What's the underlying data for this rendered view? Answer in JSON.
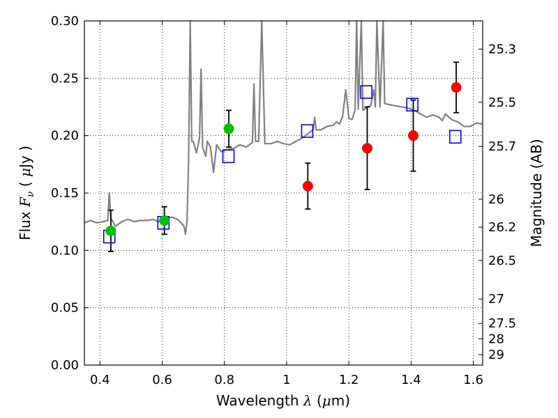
{
  "chart_data": {
    "type": "scatter",
    "xlabel": {
      "prefix": "Wavelength ",
      "symbol": "λ",
      "unit_open": " (",
      "unit_mu": "μ",
      "unit_close": "m)"
    },
    "ylabel": {
      "prefix": "Flux ",
      "symbol_F": "F",
      "symbol_sub": "ν",
      "unit_open": " ( ",
      "unit_mu": "μ",
      "unit_close": "Jy )"
    },
    "y2label": "Magnitude (AB)",
    "xlim": [
      0.35,
      1.63
    ],
    "ylim": [
      0.0,
      0.3
    ],
    "grid": true,
    "x_ticks": [
      0.4,
      0.6,
      0.8,
      1.0,
      1.2,
      1.4,
      1.6
    ],
    "x_tick_labels": [
      "0.4",
      "0.6",
      "0.8",
      "1",
      "1.2",
      "1.4",
      "1.6"
    ],
    "y_ticks": [
      0.0,
      0.05,
      0.1,
      0.15,
      0.2,
      0.25,
      0.3
    ],
    "y_tick_labels": [
      "0.00",
      "0.05",
      "0.10",
      "0.15",
      "0.20",
      "0.25",
      "0.30"
    ],
    "y2_ticks": [
      {
        "label": "25.3",
        "mag": 25.3
      },
      {
        "label": "25.5",
        "mag": 25.5
      },
      {
        "label": "25.7",
        "mag": 25.7
      },
      {
        "label": "26",
        "mag": 26.0
      },
      {
        "label": "26.2",
        "mag": 26.2
      },
      {
        "label": "26.5",
        "mag": 26.5
      },
      {
        "label": "27",
        "mag": 27.0
      },
      {
        "label": "27.5",
        "mag": 27.5
      },
      {
        "label": "28",
        "mag": 28.0
      },
      {
        "label": "29",
        "mag": 29.0
      }
    ],
    "colors": {
      "spectrum": "#808080",
      "green_points": "#00c000",
      "red_points": "#ff0000",
      "model_squares": "#0000ff",
      "errorbars": "#000000"
    },
    "series": [
      {
        "kind": "line",
        "points": [
          [
            0.35,
            0.124
          ],
          [
            0.37,
            0.126
          ],
          [
            0.39,
            0.124
          ],
          [
            0.41,
            0.125
          ],
          [
            0.425,
            0.126
          ],
          [
            0.43,
            0.15
          ],
          [
            0.435,
            0.128
          ],
          [
            0.45,
            0.121
          ],
          [
            0.47,
            0.125
          ],
          [
            0.49,
            0.127
          ],
          [
            0.51,
            0.125
          ],
          [
            0.53,
            0.126
          ],
          [
            0.55,
            0.126
          ],
          [
            0.57,
            0.127
          ],
          [
            0.59,
            0.125
          ],
          [
            0.61,
            0.127
          ],
          [
            0.63,
            0.129
          ],
          [
            0.65,
            0.127
          ],
          [
            0.67,
            0.121
          ],
          [
            0.675,
            0.114
          ],
          [
            0.68,
            0.126
          ],
          [
            0.685,
            0.18
          ],
          [
            0.69,
            0.3
          ],
          [
            0.695,
            0.195
          ],
          [
            0.7,
            0.195
          ],
          [
            0.71,
            0.185
          ],
          [
            0.72,
            0.198
          ],
          [
            0.725,
            0.258
          ],
          [
            0.73,
            0.19
          ],
          [
            0.74,
            0.182
          ],
          [
            0.745,
            0.195
          ],
          [
            0.755,
            0.19
          ],
          [
            0.765,
            0.168
          ],
          [
            0.775,
            0.192
          ],
          [
            0.79,
            0.186
          ],
          [
            0.81,
            0.188
          ],
          [
            0.83,
            0.189
          ],
          [
            0.85,
            0.192
          ],
          [
            0.87,
            0.19
          ],
          [
            0.89,
            0.194
          ],
          [
            0.895,
            0.245
          ],
          [
            0.9,
            0.195
          ],
          [
            0.91,
            0.195
          ],
          [
            0.92,
            0.3
          ],
          [
            0.93,
            0.193
          ],
          [
            0.95,
            0.193
          ],
          [
            0.97,
            0.195
          ],
          [
            0.99,
            0.193
          ],
          [
            1.01,
            0.192
          ],
          [
            1.03,
            0.195
          ],
          [
            1.05,
            0.198
          ],
          [
            1.07,
            0.202
          ],
          [
            1.085,
            0.205
          ],
          [
            1.09,
            0.216
          ],
          [
            1.095,
            0.205
          ],
          [
            1.11,
            0.205
          ],
          [
            1.13,
            0.208
          ],
          [
            1.15,
            0.209
          ],
          [
            1.16,
            0.212
          ],
          [
            1.17,
            0.21
          ],
          [
            1.18,
            0.217
          ],
          [
            1.19,
            0.24
          ],
          [
            1.2,
            0.215
          ],
          [
            1.21,
            0.214
          ],
          [
            1.22,
            0.222
          ],
          [
            1.225,
            0.3
          ],
          [
            1.23,
            0.223
          ],
          [
            1.24,
            0.3
          ],
          [
            1.245,
            0.222
          ],
          [
            1.26,
            0.225
          ],
          [
            1.27,
            0.226
          ],
          [
            1.28,
            0.24
          ],
          [
            1.285,
            0.225
          ],
          [
            1.29,
            0.3
          ],
          [
            1.3,
            0.225
          ],
          [
            1.31,
            0.3
          ],
          [
            1.315,
            0.228
          ],
          [
            1.33,
            0.227
          ],
          [
            1.35,
            0.226
          ],
          [
            1.37,
            0.225
          ],
          [
            1.39,
            0.224
          ],
          [
            1.41,
            0.222
          ],
          [
            1.43,
            0.219
          ],
          [
            1.45,
            0.216
          ],
          [
            1.47,
            0.218
          ],
          [
            1.49,
            0.216
          ],
          [
            1.5,
            0.213
          ],
          [
            1.51,
            0.219
          ],
          [
            1.53,
            0.214
          ],
          [
            1.55,
            0.212
          ],
          [
            1.57,
            0.208
          ],
          [
            1.59,
            0.208
          ],
          [
            1.61,
            0.211
          ],
          [
            1.63,
            0.21
          ]
        ]
      },
      {
        "kind": "points",
        "marker": "circle",
        "color_key": "green_points",
        "points": [
          {
            "x": 0.435,
            "y": 0.117,
            "yerr": 0.018
          },
          {
            "x": 0.607,
            "y": 0.126,
            "yerr": 0.012
          },
          {
            "x": 0.814,
            "y": 0.206,
            "yerr": 0.016
          }
        ]
      },
      {
        "kind": "points",
        "marker": "circle",
        "color_key": "red_points",
        "points": [
          {
            "x": 1.068,
            "y": 0.156,
            "yerr": 0.02
          },
          {
            "x": 1.259,
            "y": 0.189,
            "yerr": 0.036
          },
          {
            "x": 1.407,
            "y": 0.2,
            "yerr": 0.031
          },
          {
            "x": 1.545,
            "y": 0.242,
            "yerr": 0.022
          }
        ]
      },
      {
        "kind": "points",
        "marker": "square",
        "color_key": "model_squares",
        "points": [
          {
            "x": 0.43,
            "y": 0.112
          },
          {
            "x": 0.604,
            "y": 0.124
          },
          {
            "x": 0.813,
            "y": 0.182
          },
          {
            "x": 1.066,
            "y": 0.204
          },
          {
            "x": 1.256,
            "y": 0.238
          },
          {
            "x": 1.404,
            "y": 0.227
          },
          {
            "x": 1.542,
            "y": 0.199
          }
        ]
      }
    ]
  }
}
